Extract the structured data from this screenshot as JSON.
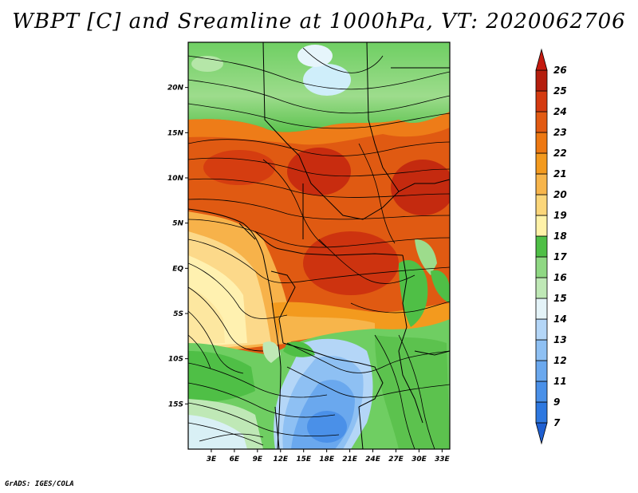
{
  "title": "WBPT [C] and Sreamline at 1000hPa, VT: 2020062706",
  "credit": "GrADS: IGES/COLA",
  "map": {
    "lat_labels": [
      "20N",
      "15N",
      "10N",
      "5N",
      "EQ",
      "5S",
      "10S",
      "15S"
    ],
    "lat_values": [
      20,
      15,
      10,
      5,
      0,
      -5,
      -10,
      -15
    ],
    "lon_labels": [
      "3E",
      "6E",
      "9E",
      "12E",
      "15E",
      "18E",
      "21E",
      "24E",
      "27E",
      "30E",
      "33E"
    ],
    "lon_values": [
      3,
      6,
      9,
      12,
      15,
      18,
      21,
      24,
      27,
      30,
      33
    ],
    "lon_range": [
      0,
      34
    ],
    "lat_range": [
      -20,
      25
    ]
  },
  "colorbar": {
    "levels": [
      "7",
      "9",
      "11",
      "12",
      "13",
      "14",
      "15",
      "16",
      "17",
      "18",
      "19",
      "20",
      "21",
      "22",
      "23",
      "24",
      "25",
      "26"
    ],
    "colors": [
      "#1f5fd1",
      "#2e78e0",
      "#4a90e8",
      "#6aa8ee",
      "#8ec0f3",
      "#b4d6f7",
      "#e4f3f8",
      "#bfe8b6",
      "#8fd883",
      "#4fbf46",
      "#fff2a8",
      "#fbd67a",
      "#f7b54b",
      "#f39a1e",
      "#ed7812",
      "#e25a12",
      "#d43a10",
      "#b51e0e",
      "#c41a0f"
    ]
  }
}
